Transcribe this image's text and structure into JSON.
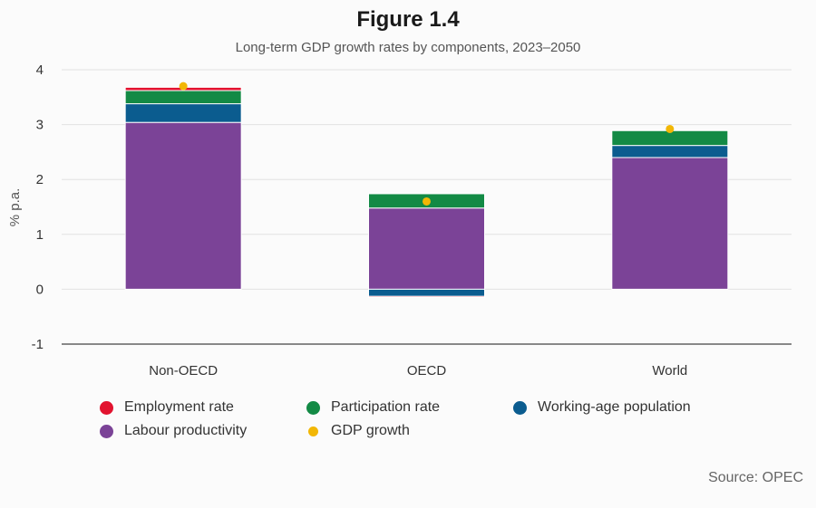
{
  "chart_data": {
    "type": "bar",
    "stacked": true,
    "title": "Figure 1.4",
    "subtitle": "Long-term GDP growth rates by components, 2023–2050",
    "ylabel": "% p.a.",
    "xlabel": "",
    "ylim": [
      -1,
      4
    ],
    "yticks": [
      "-1",
      "0",
      "1",
      "2",
      "3",
      "4"
    ],
    "grid": true,
    "legend_position": "bottom",
    "categories": [
      "Non-OECD",
      "OECD",
      "World"
    ],
    "series": [
      {
        "name": "Labour productivity",
        "color": "#7b4397",
        "values": [
          3.04,
          1.48,
          2.4
        ]
      },
      {
        "name": "Working-age population",
        "color": "#0b5c8f",
        "values": [
          0.34,
          -0.13,
          0.22
        ]
      },
      {
        "name": "Participation rate",
        "color": "#138a45",
        "values": [
          0.24,
          0.26,
          0.27
        ]
      },
      {
        "name": "Employment rate",
        "color": "#e2132f",
        "values": [
          0.06,
          -0.02,
          0.0
        ]
      }
    ],
    "markers": {
      "name": "GDP growth",
      "color": "#f2b705",
      "values": [
        3.7,
        1.6,
        2.92
      ]
    },
    "source": "Source: OPEC"
  },
  "legend": [
    {
      "label": "Employment rate",
      "color": "#e2132f",
      "shape": "circle"
    },
    {
      "label": "Participation rate",
      "color": "#138a45",
      "shape": "circle"
    },
    {
      "label": "Working-age population",
      "color": "#0b5c8f",
      "shape": "circle"
    },
    {
      "label": "Labour productivity",
      "color": "#7b4397",
      "shape": "circle"
    },
    {
      "label": "GDP growth",
      "color": "#f2b705",
      "shape": "dot"
    }
  ]
}
